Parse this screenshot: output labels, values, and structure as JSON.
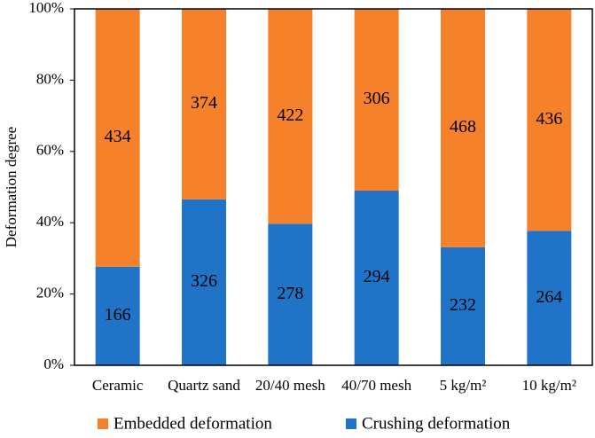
{
  "chart_data": {
    "type": "bar",
    "stacking": "percent",
    "y_label": "Deformation degree",
    "categories": [
      "Ceramic",
      "Quartz sand",
      "20/40 mesh",
      "40/70 mesh",
      "5 kg/m²",
      "10 kg/m²"
    ],
    "series": [
      {
        "name": "Crushing deformation",
        "color": "#1f74c8",
        "values": [
          166,
          326,
          278,
          294,
          232,
          264
        ]
      },
      {
        "name": "Embedded deformation",
        "color": "#f5822a",
        "values": [
          434,
          374,
          422,
          306,
          468,
          436
        ]
      }
    ],
    "ylim": [
      0,
      100
    ],
    "yticks": [
      {
        "value": 0,
        "label": "0%"
      },
      {
        "value": 20,
        "label": "20%"
      },
      {
        "value": 40,
        "label": "40%"
      },
      {
        "value": 60,
        "label": "60%"
      },
      {
        "value": 80,
        "label": "80%"
      },
      {
        "value": 100,
        "label": "100%"
      }
    ],
    "legend": "bottom"
  }
}
